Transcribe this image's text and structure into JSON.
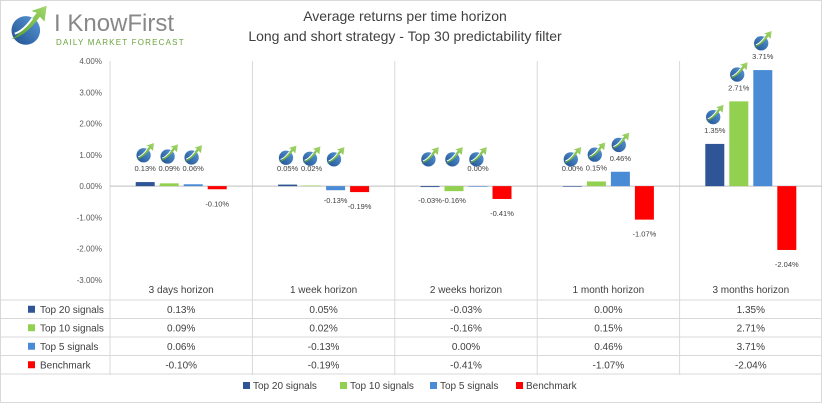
{
  "logo": {
    "brand": "I KnowFirst",
    "tagline": "DAILY MARKET FORECAST"
  },
  "chart_data": {
    "type": "bar",
    "title": "Average returns per time horizon",
    "subtitle": "Long and short strategy - Top 30 predictability filter",
    "categories": [
      "3 days horizon",
      "1 week horizon",
      "2 weeks horizon",
      "1 month horizon",
      "3 months horizon"
    ],
    "y_ticks": [
      "4.00%",
      "3.00%",
      "2.00%",
      "1.00%",
      "0.00%",
      "-1.00%",
      "-2.00%",
      "-3.00%"
    ],
    "ylim": [
      -3,
      4
    ],
    "unit": "%",
    "grid": "vertical category separators",
    "legend_position": "bottom",
    "series": [
      {
        "name": "Top 20 signals",
        "color": "#2f5597",
        "values": [
          0.13,
          0.05,
          -0.03,
          0.0,
          1.35
        ],
        "labels": [
          "0.13%",
          "0.05%",
          "-0.03%",
          "0.00%",
          "1.35%"
        ]
      },
      {
        "name": "Top 10 signals",
        "color": "#92d050",
        "values": [
          0.09,
          0.02,
          -0.16,
          0.15,
          2.71
        ],
        "labels": [
          "0.09%",
          "0.02%",
          "-0.16%",
          "0.15%",
          "2.71%"
        ]
      },
      {
        "name": "Top 5 signals",
        "color": "#4a8bd6",
        "values": [
          0.06,
          -0.13,
          0.0,
          0.46,
          3.71
        ],
        "labels": [
          "0.06%",
          "-0.13%",
          "0.00%",
          "0.46%",
          "3.71%"
        ]
      },
      {
        "name": "Benchmark",
        "color": "#ff0000",
        "values": [
          -0.1,
          -0.19,
          -0.41,
          -1.07,
          -2.04
        ],
        "labels": [
          "-0.10%",
          "-0.19%",
          "-0.41%",
          "-1.07%",
          "-2.04%"
        ]
      }
    ]
  }
}
